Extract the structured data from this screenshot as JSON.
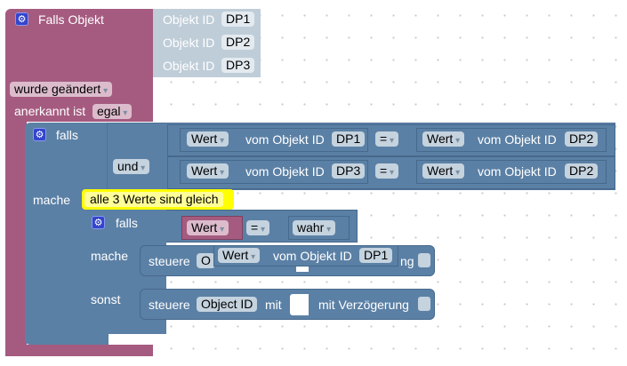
{
  "trigger": {
    "title": "Falls Objekt",
    "object_ids": [
      {
        "label": "Objekt ID",
        "value": "DP1"
      },
      {
        "label": "Objekt ID",
        "value": "DP2"
      },
      {
        "label": "Objekt ID",
        "value": "DP3"
      }
    ],
    "change_mode": "wurde geändert",
    "ack_label": "anerkannt ist",
    "ack_value": "egal"
  },
  "if_block": {
    "falls": "falls",
    "und": "und",
    "mache": "mache",
    "rows": [
      {
        "left_field": "Wert",
        "left_text": "vom Objekt ID",
        "left_id": "DP1",
        "op": "=",
        "right_field": "Wert",
        "right_text": "vom Objekt ID",
        "right_id": "DP2"
      },
      {
        "left_field": "Wert",
        "left_text": "vom Objekt ID",
        "left_id": "DP3",
        "op": "=",
        "right_field": "Wert",
        "right_text": "vom Objekt ID",
        "right_id": "DP2"
      }
    ]
  },
  "comment": "alle 3 Werte sind gleich",
  "inner_if": {
    "falls": "falls",
    "cond_field": "Wert",
    "op": "=",
    "cond_value": "wahr",
    "mache": "mache",
    "sonst": "sonst",
    "then_block": {
      "steuere": "steuere",
      "field_partial": "O",
      "tail": "ng",
      "floating": {
        "field": "Wert",
        "text": "vom Objekt ID",
        "id": "DP1"
      }
    },
    "else_block": {
      "steuere": "steuere",
      "field": "Object ID",
      "mit": "mit",
      "delay": "mit Verzögerung"
    }
  },
  "colors": {
    "trigger": "#a55b80",
    "logic": "#5b80a5",
    "object_id": "#bfcdd8",
    "comment": "#ffff00"
  }
}
